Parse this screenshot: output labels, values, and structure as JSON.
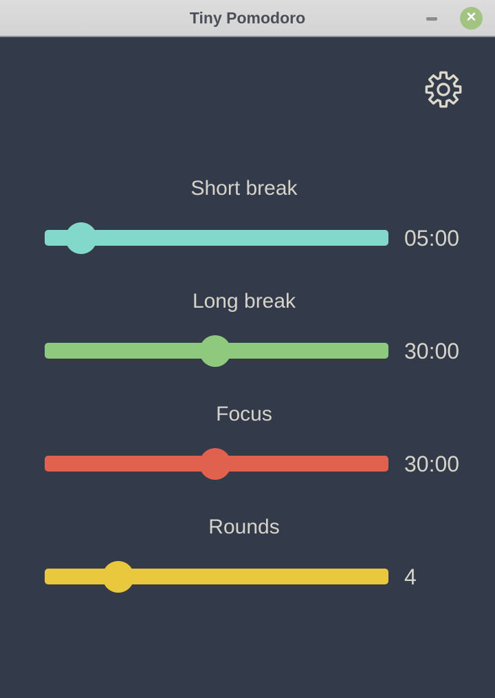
{
  "titlebar": {
    "title": "Tiny Pomodoro",
    "close_glyph": "✕"
  },
  "colors": {
    "background": "#333a4a",
    "titlebar_bg": "#d8d8d8",
    "title_text": "#4b4f58",
    "close_button_bg": "#a3c383",
    "minimize_color": "#8c8c8c",
    "label_text": "#d6d3c9",
    "gear_stroke": "#dcd9cc"
  },
  "sliders": [
    {
      "label": "Short break",
      "value": "05:00",
      "color": "#82d9cb",
      "percent": 10.6
    },
    {
      "label": "Long break",
      "value": "30:00",
      "color": "#8fc97e",
      "percent": 49.6
    },
    {
      "label": "Focus",
      "value": "30:00",
      "color": "#e0614d",
      "percent": 49.6
    },
    {
      "label": "Rounds",
      "value": "4",
      "color": "#e9c83e",
      "percent": 21.4
    }
  ]
}
